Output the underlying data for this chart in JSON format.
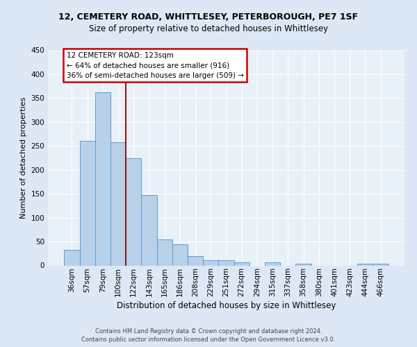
{
  "title1": "12, CEMETERY ROAD, WHITTLESEY, PETERBOROUGH, PE7 1SF",
  "title2": "Size of property relative to detached houses in Whittlesey",
  "xlabel": "Distribution of detached houses by size in Whittlesey",
  "ylabel": "Number of detached properties",
  "categories": [
    "36sqm",
    "57sqm",
    "79sqm",
    "100sqm",
    "122sqm",
    "143sqm",
    "165sqm",
    "186sqm",
    "208sqm",
    "229sqm",
    "251sqm",
    "272sqm",
    "294sqm",
    "315sqm",
    "337sqm",
    "358sqm",
    "380sqm",
    "401sqm",
    "423sqm",
    "444sqm",
    "466sqm"
  ],
  "values": [
    33,
    260,
    362,
    257,
    225,
    148,
    55,
    44,
    19,
    11,
    11,
    7,
    0,
    6,
    0,
    4,
    0,
    0,
    0,
    3,
    3
  ],
  "bar_color": "#b8d0e8",
  "bar_edge_color": "#5b9bd5",
  "property_line_x": 3.5,
  "property_line_color": "#8b1a1a",
  "annotation_line1": "12 CEMETERY ROAD: 123sqm",
  "annotation_line2": "← 64% of detached houses are smaller (916)",
  "annotation_line3": "36% of semi-detached houses are larger (509) →",
  "annotation_box_color": "#ffffff",
  "annotation_box_edge": "#cc0000",
  "footer": "Contains HM Land Registry data © Crown copyright and database right 2024.\nContains public sector information licensed under the Open Government Licence v3.0.",
  "bg_color": "#dce8f5",
  "plot_bg_color": "#e8f0f8",
  "ylim": [
    0,
    450
  ],
  "yticks": [
    0,
    50,
    100,
    150,
    200,
    250,
    300,
    350,
    400,
    450
  ],
  "grid_color": "#ffffff",
  "title1_fontsize": 9,
  "title2_fontsize": 8.5,
  "xlabel_fontsize": 8.5,
  "ylabel_fontsize": 8,
  "tick_fontsize": 7.5,
  "annotation_fontsize": 7.5,
  "footer_fontsize": 6
}
